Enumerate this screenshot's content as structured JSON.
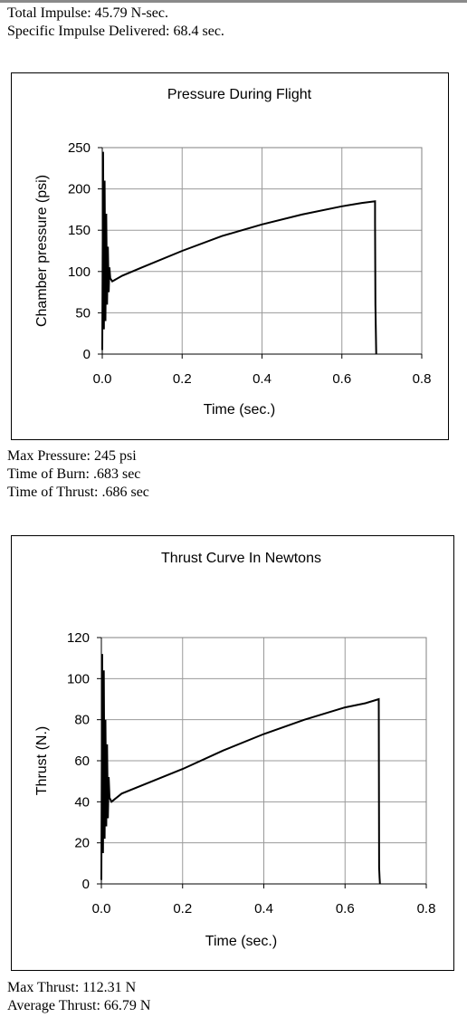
{
  "header": {
    "total_impulse": "Total Impulse: 45.79 N-sec.",
    "specific_impulse": "Specific Impulse Delivered: 68.4 sec."
  },
  "pressure_stats": {
    "max_pressure": "Max Pressure: 245 psi",
    "time_of_burn": "Time of Burn: .683 sec",
    "time_of_thrust": "Time of Thrust: .686 sec"
  },
  "thrust_stats": {
    "max_thrust": "Max Thrust: 112.31 N",
    "average_thrust": "Average Thrust: 66.79 N"
  },
  "chart_data": [
    {
      "type": "line",
      "title": "Pressure During Flight",
      "xlabel": "Time (sec.)",
      "ylabel": "Chamber pressure (psi)",
      "xlim": [
        0,
        0.8
      ],
      "ylim": [
        0,
        250
      ],
      "x_ticks": [
        0.0,
        0.2,
        0.4,
        0.6,
        0.8
      ],
      "x_tick_labels": [
        "0.0",
        "0.2",
        "0.4",
        "0.6",
        "0.8"
      ],
      "y_ticks": [
        0,
        50,
        100,
        150,
        200,
        250
      ],
      "y_tick_labels": [
        "0",
        "50",
        "100",
        "150",
        "200",
        "250"
      ],
      "grid": true,
      "line_color": "#000000",
      "series": [
        {
          "x": [
            0.0,
            0.002,
            0.004,
            0.006,
            0.008,
            0.01,
            0.012,
            0.014,
            0.016,
            0.018,
            0.02,
            0.025,
            0.05,
            0.1,
            0.2,
            0.3,
            0.4,
            0.5,
            0.6,
            0.65,
            0.683,
            0.683,
            0.684,
            0.686
          ],
          "y": [
            5,
            245,
            30,
            210,
            40,
            170,
            60,
            130,
            75,
            105,
            92,
            88,
            95,
            105,
            125,
            143,
            157,
            169,
            179,
            183,
            185,
            160,
            60,
            0
          ]
        }
      ]
    },
    {
      "type": "line",
      "title": "Thrust Curve In Newtons",
      "xlabel": "Time (sec.)",
      "ylabel": "Thrust (N.)",
      "xlim": [
        0,
        0.8
      ],
      "ylim": [
        0,
        120
      ],
      "x_ticks": [
        0.0,
        0.2,
        0.4,
        0.6,
        0.8
      ],
      "x_tick_labels": [
        "0.0",
        "0.2",
        "0.4",
        "0.6",
        "0.8"
      ],
      "y_ticks": [
        0,
        20,
        40,
        60,
        80,
        100,
        120
      ],
      "y_tick_labels": [
        "0",
        "20",
        "40",
        "60",
        "80",
        "100",
        "120"
      ],
      "grid": true,
      "line_color": "#000000",
      "series": [
        {
          "x": [
            0.0,
            0.002,
            0.004,
            0.006,
            0.008,
            0.01,
            0.012,
            0.014,
            0.016,
            0.018,
            0.02,
            0.025,
            0.05,
            0.1,
            0.2,
            0.3,
            0.4,
            0.5,
            0.6,
            0.65,
            0.683,
            0.684,
            0.685,
            0.686
          ],
          "y": [
            2,
            112,
            15,
            104,
            22,
            80,
            28,
            68,
            32,
            52,
            42,
            40,
            44,
            48,
            56,
            65,
            73,
            80,
            86,
            88,
            90,
            8,
            3,
            0
          ]
        }
      ]
    }
  ]
}
